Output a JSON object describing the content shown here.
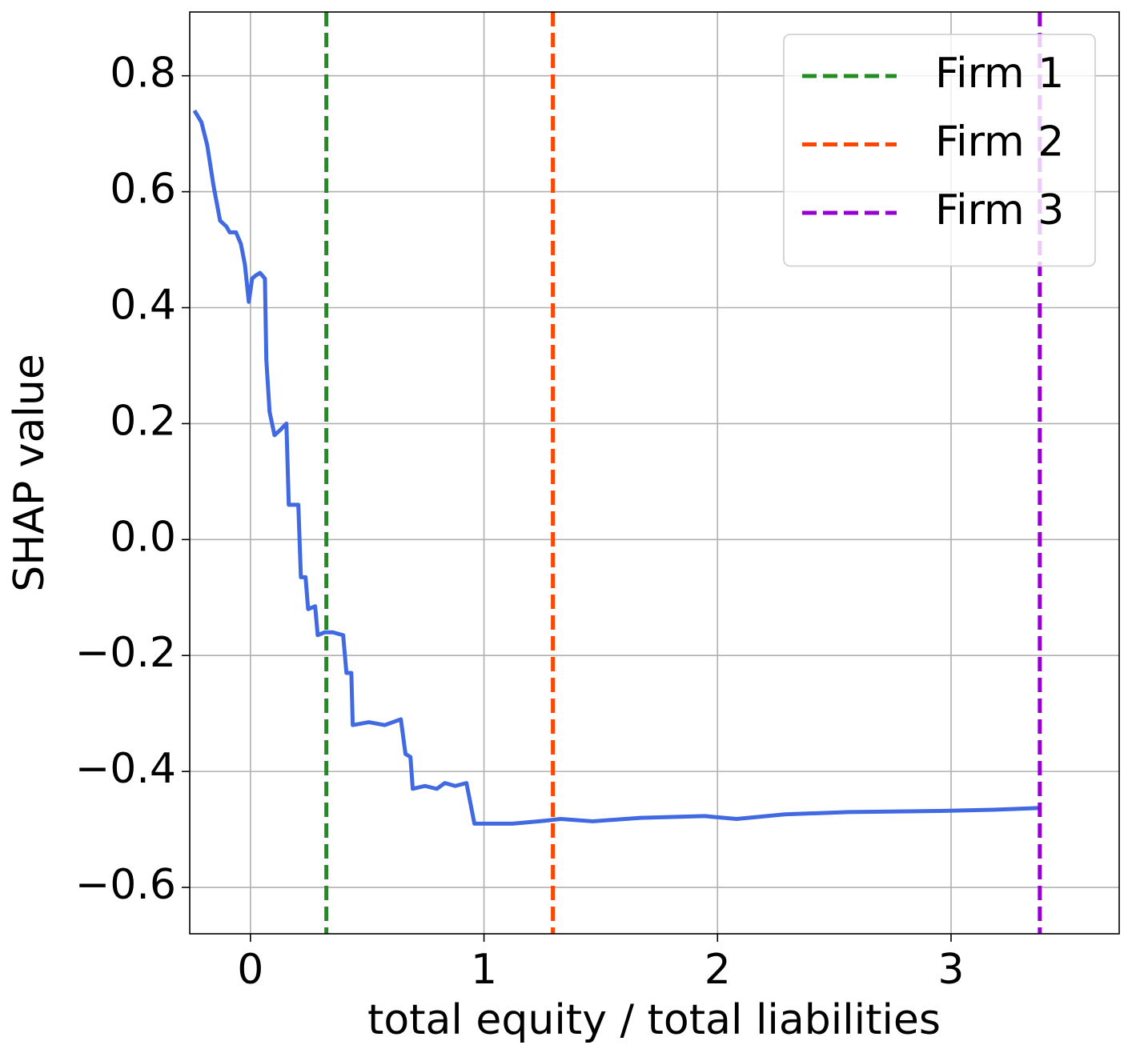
{
  "chart_data": {
    "type": "line",
    "xlabel": "total equity / total liabilities",
    "ylabel": "SHAP value",
    "x": [
      -0.24,
      -0.21,
      -0.185,
      -0.158,
      -0.13,
      -0.103,
      -0.089,
      -0.062,
      -0.041,
      -0.024,
      -0.007,
      0.007,
      0.021,
      0.041,
      0.062,
      0.068,
      0.082,
      0.103,
      0.13,
      0.154,
      0.164,
      0.205,
      0.216,
      0.236,
      0.247,
      0.277,
      0.288,
      0.318,
      0.353,
      0.397,
      0.411,
      0.432,
      0.438,
      0.507,
      0.575,
      0.644,
      0.664,
      0.685,
      0.695,
      0.747,
      0.798,
      0.832,
      0.877,
      0.925,
      0.959,
      1.021,
      1.123,
      1.26,
      1.329,
      1.466,
      1.671,
      1.945,
      2.082,
      2.288,
      2.562,
      2.973,
      3.178,
      3.384
    ],
    "values": [
      0.74,
      0.72,
      0.68,
      0.61,
      0.55,
      0.54,
      0.53,
      0.53,
      0.51,
      0.475,
      0.41,
      0.45,
      0.455,
      0.46,
      0.45,
      0.31,
      0.22,
      0.18,
      0.19,
      0.2,
      0.06,
      0.06,
      -0.065,
      -0.065,
      -0.12,
      -0.115,
      -0.165,
      -0.16,
      -0.16,
      -0.165,
      -0.23,
      -0.23,
      -0.32,
      -0.315,
      -0.32,
      -0.31,
      -0.37,
      -0.375,
      -0.43,
      -0.425,
      -0.43,
      -0.42,
      -0.425,
      -0.42,
      -0.49,
      -0.49,
      -0.49,
      -0.485,
      -0.482,
      -0.486,
      -0.48,
      -0.477,
      -0.482,
      -0.474,
      -0.47,
      -0.468,
      -0.466,
      -0.463
    ],
    "color": "#4169e1",
    "vlines": [
      {
        "name": "Firm 1",
        "color": "#228b22",
        "x": 0.325
      },
      {
        "name": "Firm 2",
        "color": "#ff4500",
        "x": 1.295
      },
      {
        "name": "Firm 3",
        "color": "#9400d3",
        "x": 3.38
      }
    ],
    "xlim": [
      -0.26,
      3.72
    ],
    "ylim": [
      -0.68,
      0.91
    ],
    "xticks": [
      0,
      1,
      2,
      3
    ],
    "yticks": [
      {
        "value": -0.6,
        "label": "−0.6"
      },
      {
        "value": -0.4,
        "label": "−0.4"
      },
      {
        "value": -0.2,
        "label": "−0.2"
      },
      {
        "value": 0,
        "label": "0.0"
      },
      0.2,
      0.4,
      0.6,
      0.8
    ],
    "grid": true,
    "legend": "upper right"
  }
}
